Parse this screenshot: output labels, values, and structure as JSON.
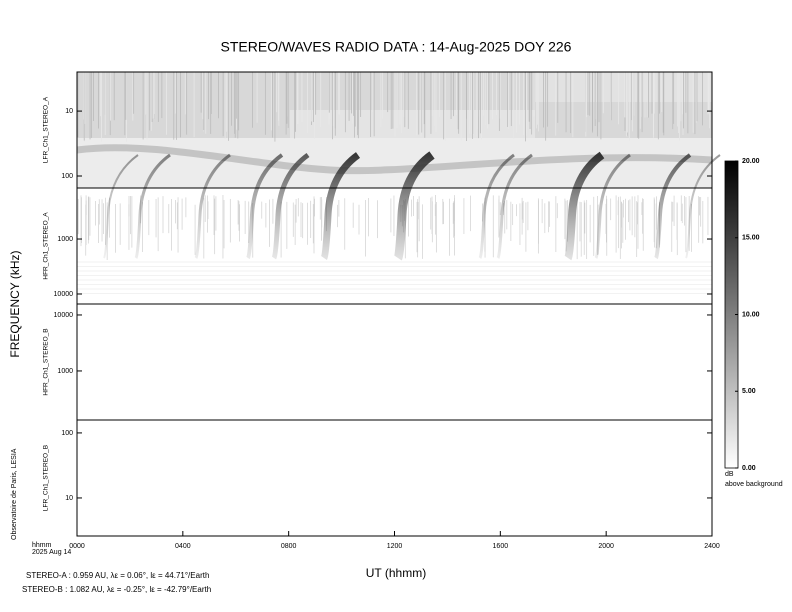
{
  "chart_data": {
    "type": "spectrogram",
    "title": "STEREO/WAVES  RADIO  DATA : 14-Aug-2025  DOY 226",
    "ylabel": "FREQUENCY (kHz)",
    "xlabel": "UT (hhmm)",
    "x_unit_label": "hhmm",
    "date_label": "2025 Aug 14",
    "credit": "Observatoire de Paris, LESIA",
    "xlim": [
      0,
      24
    ],
    "xticks": [
      {
        "value": 0,
        "label": "0000"
      },
      {
        "value": 4,
        "label": "0400"
      },
      {
        "value": 8,
        "label": "0800"
      },
      {
        "value": 12,
        "label": "1200"
      },
      {
        "value": 16,
        "label": "1600"
      },
      {
        "value": 20,
        "label": "2000"
      },
      {
        "value": 24,
        "label": "2400"
      }
    ],
    "panels": [
      {
        "label": "LFR_Ch1_STEREO_A",
        "log": true,
        "ylim": [
          153,
          2.5
        ],
        "yticks": [
          10,
          100
        ]
      },
      {
        "label": "HFR_Ch1_STEREO_A",
        "log": true,
        "ylim": [
          15200,
          118
        ],
        "yticks": [
          1000,
          10000
        ]
      },
      {
        "label": "HFR_Ch1_STEREO_B",
        "log": true,
        "ylim": [
          133,
          15700
        ],
        "yticks": [
          10000,
          1000
        ]
      },
      {
        "label": "LFR_Ch1_STEREO_B",
        "log": true,
        "ylim": [
          2.6,
          158
        ],
        "yticks": [
          100,
          10
        ]
      }
    ],
    "colorbar": {
      "lim": [
        0,
        20
      ],
      "label": "dB",
      "sublabel": "above background",
      "ticks": [
        {
          "value": 0,
          "label": "0.00"
        },
        {
          "value": 5,
          "label": "5.00"
        },
        {
          "value": 10,
          "label": "10.00"
        },
        {
          "value": 15,
          "label": "15.00"
        },
        {
          "value": 20,
          "label": "20.00"
        }
      ]
    },
    "footer": [
      "STEREO-A : 0.959 AU, λε = 0.06°, lε = 44.71°/Earth",
      "STEREO-B : 1.082 AU, λε = -0.25°, lε = -42.79°/Earth"
    ]
  }
}
